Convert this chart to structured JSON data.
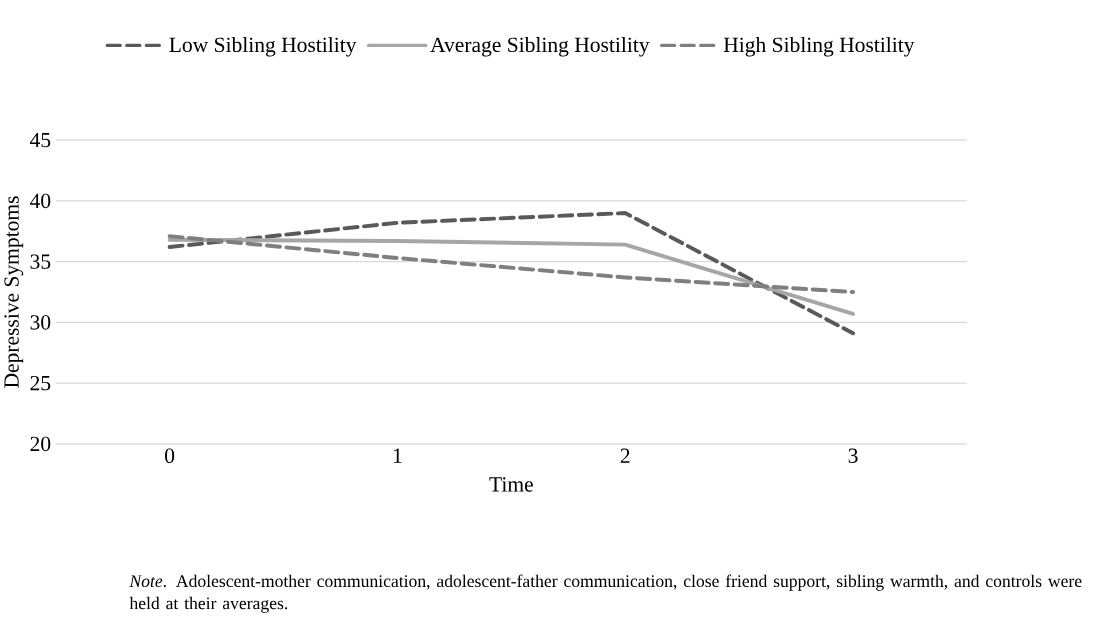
{
  "chart_data": {
    "type": "line",
    "xlabel": "Time",
    "ylabel": "Depressive Symptoms",
    "categories": [
      "0",
      "1",
      "2",
      "3"
    ],
    "series": [
      {
        "name": "Low Sibling Hostility",
        "color": "#595959",
        "line_style": "dashed",
        "values": [
          36.2,
          38.2,
          39.0,
          29.1
        ]
      },
      {
        "name": "Average Sibling Hostility",
        "color": "#a6a6a6",
        "line_style": "solid",
        "values": [
          36.8,
          36.7,
          36.4,
          30.7
        ]
      },
      {
        "name": "High Sibling Hostility",
        "color": "#7f7f7f",
        "line_style": "dashed",
        "values": [
          37.1,
          35.3,
          33.7,
          32.5
        ]
      }
    ],
    "ylim": [
      20,
      45
    ],
    "yticks": [
      20,
      25,
      30,
      35,
      40,
      45
    ],
    "grid": "y",
    "legend": "top",
    "annotations": [
      "*Note*. Adolescent-mother communication, adolescent-father communication, close friend support, sibling warmth, and controls were held at their averages."
    ]
  }
}
